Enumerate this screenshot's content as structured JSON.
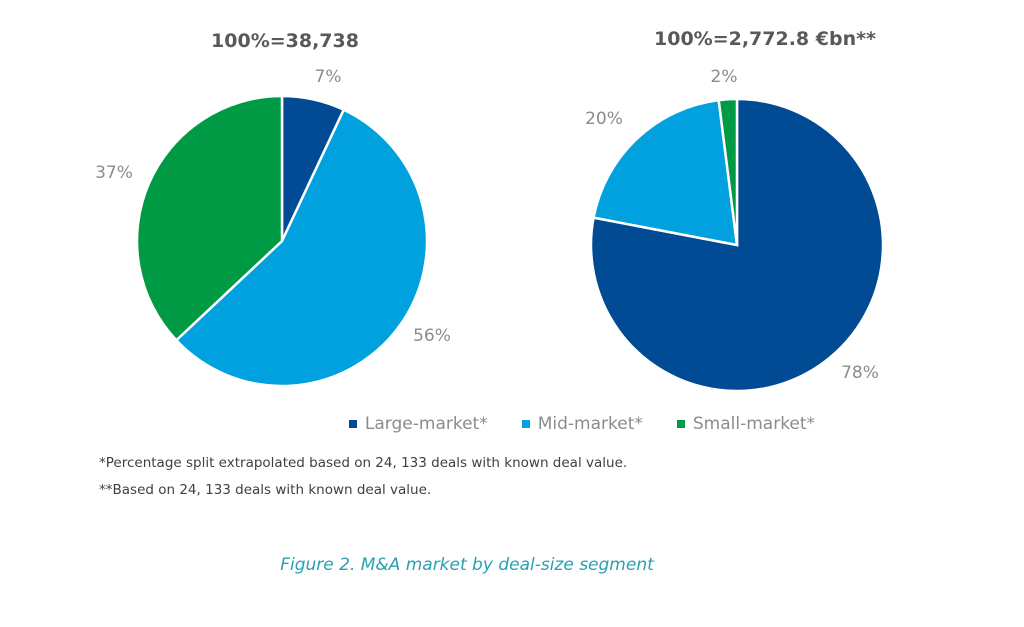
{
  "colors": {
    "large": "#004b93",
    "mid": "#00a1de",
    "small": "#009a44"
  },
  "legend": [
    {
      "label": "Large-market*",
      "color": "#004b93"
    },
    {
      "label": "Mid-market*",
      "color": "#00a1de"
    },
    {
      "label": "Small-market*",
      "color": "#009a44"
    }
  ],
  "notes": {
    "note1": "*Percentage split extrapolated based on 24, 133 deals with known deal value.",
    "note2": "**Based on 24, 133 deals with known deal value."
  },
  "caption": "Figure 2. M&A market by deal-size segment",
  "chart_data": [
    {
      "type": "pie",
      "title": "100%=38,738",
      "slices": [
        {
          "name": "Large-market*",
          "value": 7,
          "label": "7%"
        },
        {
          "name": "Mid-market*",
          "value": 56,
          "label": "56%"
        },
        {
          "name": "Small-market*",
          "value": 37,
          "label": "37%"
        }
      ],
      "start": "12 o'clock, clockwise",
      "legend": "bottom"
    },
    {
      "type": "pie",
      "title": "100%=2,772.8 €bn**",
      "slices": [
        {
          "name": "Large-market*",
          "value": 78,
          "label": "78%"
        },
        {
          "name": "Mid-market*",
          "value": 20,
          "label": "20%"
        },
        {
          "name": "Small-market*",
          "value": 2,
          "label": "2%"
        }
      ],
      "start": "12 o'clock, clockwise",
      "legend": "bottom"
    }
  ]
}
